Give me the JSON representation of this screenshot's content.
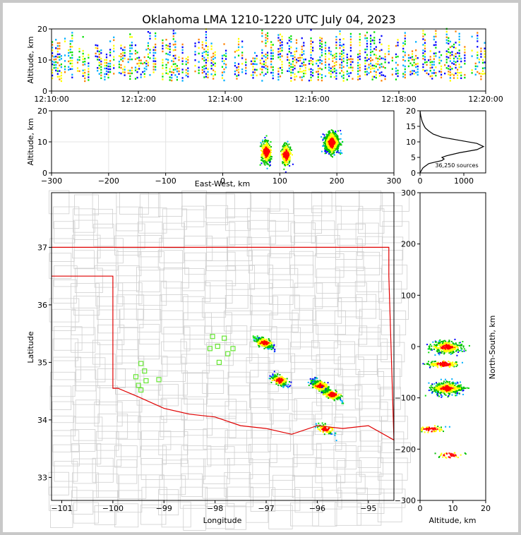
{
  "title": "Oklahoma LMA 1210-1220 UTC July 04, 2023",
  "chart_data": [
    {
      "id": "time-height",
      "type": "heatmap",
      "ylabel": "Altitude, km",
      "xlim": [
        "12:10:00",
        "12:20:00"
      ],
      "ylim": [
        0,
        20
      ],
      "xticks": [
        "12:10:00",
        "12:12:00",
        "12:14:00",
        "12:16:00",
        "12:18:00",
        "12:20:00"
      ],
      "yticks": [
        "0",
        "10",
        "20"
      ]
    },
    {
      "id": "ew-altitude",
      "type": "heatmap",
      "xlabel": "East-West, km",
      "ylabel": "Altitude, km",
      "xlim": [
        -300,
        300
      ],
      "ylim": [
        0,
        20
      ],
      "xticks": [
        "−300",
        "−200",
        "−100",
        "0",
        "100",
        "200",
        "300"
      ],
      "yticks": [
        "0",
        "10",
        "20"
      ],
      "clusters": [
        {
          "x": 75,
          "z": 7,
          "n": 3
        },
        {
          "x": 110,
          "z": 6,
          "n": 2
        },
        {
          "x": 190,
          "z": 10,
          "n": 5
        }
      ]
    },
    {
      "id": "altitude-histogram",
      "type": "line",
      "xlim": [
        0,
        1500
      ],
      "ylim": [
        0,
        20
      ],
      "xticks": [
        "0",
        "1000"
      ],
      "yticks": [
        "0",
        "5",
        "10",
        "15",
        "20"
      ],
      "annotation": "36,250 sources",
      "x": [
        0,
        20,
        40,
        60,
        100,
        150,
        200,
        350,
        500,
        550,
        500,
        600,
        900,
        1300,
        1450,
        1300,
        900,
        500,
        300,
        200,
        120,
        80,
        50,
        30,
        15,
        5,
        0
      ],
      "y": [
        0,
        0.5,
        1,
        1.5,
        2,
        2.5,
        3,
        3.5,
        4,
        4.5,
        5,
        5.5,
        6.5,
        7.5,
        8.5,
        9.5,
        10.5,
        11.5,
        12.5,
        13.5,
        14.5,
        15.5,
        16.5,
        17.5,
        18.5,
        19.5,
        20
      ]
    },
    {
      "id": "plan-view",
      "type": "scatter",
      "xlabel": "Longitude",
      "ylabel": "Latitude",
      "xlim": [
        -101.2,
        -94.5
      ],
      "ylim": [
        32.6,
        37.95
      ],
      "xticks": [
        "−101",
        "−100",
        "−99",
        "−98",
        "−97",
        "−96",
        "−95"
      ],
      "yticks": [
        "33",
        "34",
        "35",
        "36",
        "37"
      ],
      "stations": [
        [
          -99.55,
          34.75
        ],
        [
          -99.45,
          34.98
        ],
        [
          -99.38,
          34.85
        ],
        [
          -99.35,
          34.68
        ],
        [
          -99.5,
          34.6
        ],
        [
          -99.45,
          34.52
        ],
        [
          -99.1,
          34.7
        ],
        [
          -98.05,
          35.45
        ],
        [
          -98.1,
          35.24
        ],
        [
          -97.95,
          35.28
        ],
        [
          -97.82,
          35.42
        ],
        [
          -97.75,
          35.15
        ],
        [
          -97.65,
          35.24
        ],
        [
          -97.92,
          35.0
        ]
      ],
      "clusters": [
        {
          "lon": -97.05,
          "lat": 35.35,
          "n": 3
        },
        {
          "lon": -96.75,
          "lat": 34.7,
          "n": 2
        },
        {
          "lon": -95.95,
          "lat": 34.6,
          "n": 4
        },
        {
          "lon": -95.72,
          "lat": 34.45,
          "n": 2
        },
        {
          "lon": -95.85,
          "lat": 33.85,
          "n": 1
        }
      ]
    },
    {
      "id": "altitude-ns",
      "type": "heatmap",
      "xlabel": "Altitude, km",
      "ylabel": "North-South, km",
      "xlim": [
        0,
        20
      ],
      "ylim": [
        -300,
        300
      ],
      "xticks": [
        "0",
        "10",
        "20"
      ],
      "yticks": [
        "−300",
        "−200",
        "−100",
        "0",
        "100",
        "200",
        "300"
      ]
    }
  ]
}
